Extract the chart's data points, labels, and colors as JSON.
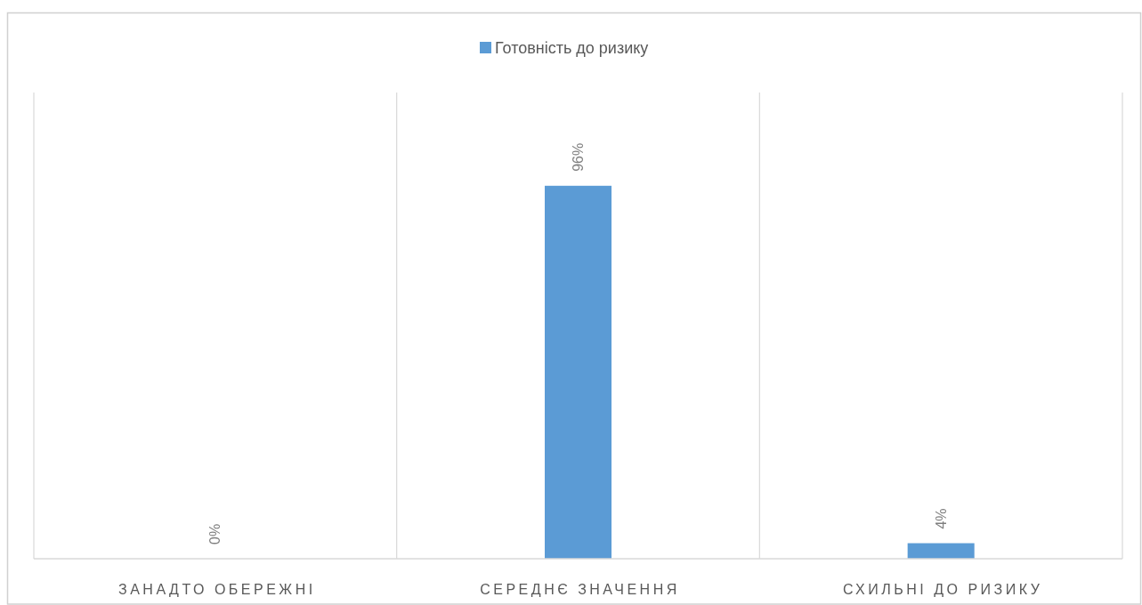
{
  "chart_data": {
    "type": "bar",
    "categories": [
      "ЗАНАДТО ОБЕРЕЖНІ",
      "СЕРЕДНЄ ЗНАЧЕННЯ",
      "СХИЛЬНІ ДО РИЗИКУ"
    ],
    "series": [
      {
        "name": "Готовність до ризику",
        "color": "#5b9bd5",
        "values": [
          0,
          96,
          4
        ],
        "value_labels": [
          "0%",
          "96%",
          "4%"
        ]
      }
    ],
    "ylim": [
      0,
      120
    ],
    "grid": "x",
    "legend": "top",
    "tick_labels": "x"
  }
}
